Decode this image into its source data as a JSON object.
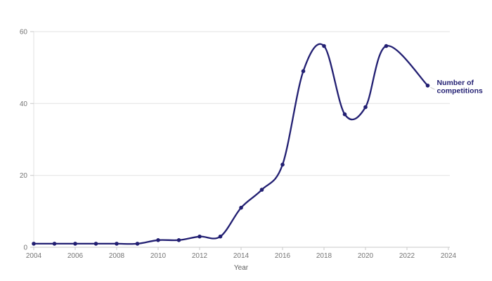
{
  "chart_data": {
    "type": "line",
    "title": "",
    "xlabel": "Year",
    "ylabel": "",
    "xlim": [
      2004,
      2024
    ],
    "ylim": [
      0,
      60
    ],
    "x_ticks": [
      2004,
      2006,
      2008,
      2010,
      2012,
      2014,
      2016,
      2018,
      2020,
      2022,
      2024
    ],
    "y_ticks": [
      0,
      20,
      40,
      60
    ],
    "grid": "horizontal gridlines at y ticks, light vertical axis line on left",
    "curve": "smooth",
    "legend_position": "end-of-line annotation at last data point",
    "series": [
      {
        "name": "Number of competitions",
        "label_lines": [
          "Number of",
          "competitions"
        ],
        "color": "#221f72",
        "markers": "filled circles on every point",
        "points": [
          {
            "year": 2004,
            "value": 1
          },
          {
            "year": 2005,
            "value": 1
          },
          {
            "year": 2006,
            "value": 1
          },
          {
            "year": 2007,
            "value": 1
          },
          {
            "year": 2008,
            "value": 1
          },
          {
            "year": 2009,
            "value": 1
          },
          {
            "year": 2010,
            "value": 2
          },
          {
            "year": 2011,
            "value": 2
          },
          {
            "year": 2012,
            "value": 3
          },
          {
            "year": 2013,
            "value": 3
          },
          {
            "year": 2014,
            "value": 11
          },
          {
            "year": 2015,
            "value": 16
          },
          {
            "year": 2016,
            "value": 23
          },
          {
            "year": 2017,
            "value": 49
          },
          {
            "year": 2018,
            "value": 56
          },
          {
            "year": 2019,
            "value": 37
          },
          {
            "year": 2020,
            "value": 39
          },
          {
            "year": 2021,
            "value": 56
          },
          {
            "year": 2023,
            "value": 45
          }
        ]
      }
    ]
  },
  "colors": {
    "line": "#221f72",
    "grid": "#e2e2e2",
    "axis": "#c8c8c8",
    "tick": "#c8c8c8",
    "tick_text": "#757575",
    "axis_title_text": "#5f5f5f",
    "leader": "#c9c9c9",
    "background": "#ffffff"
  }
}
